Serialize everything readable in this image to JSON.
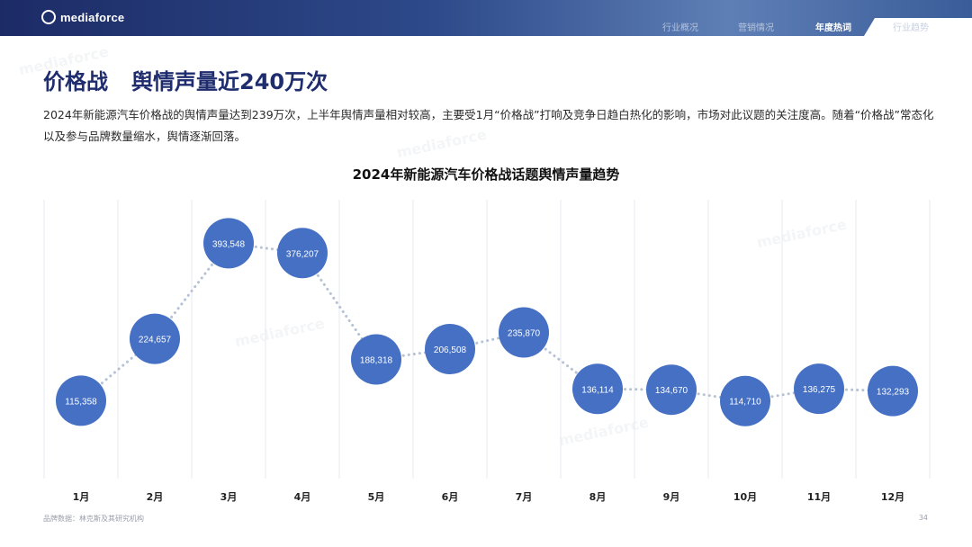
{
  "header": {
    "logo_text": "mediaforce",
    "nav": [
      {
        "label": "行业概况",
        "active": false
      },
      {
        "label": "营销情况",
        "active": false
      },
      {
        "label": "年度热词",
        "active": true
      },
      {
        "label": "行业趋势",
        "active": false
      }
    ]
  },
  "page": {
    "title_part1": "价格战",
    "title_part2": "舆情声量近240万次",
    "description": "2024年新能源汽车价格战的舆情声量达到239万次，上半年舆情声量相对较高，主要受1月“价格战”打响及竞争日趋白热化的影响，市场对此议题的关注度高。随着“价格战”常态化以及参与品牌数量缩水，舆情逐渐回落。"
  },
  "footer": {
    "source": "品牌数据：林克斯及其研究机构",
    "page_number": "34"
  },
  "watermark_text": "mediaforce",
  "colors": {
    "bubble": "#4570c4",
    "dots": "#b5c2d6",
    "gridline": "#e6e9ef",
    "title_color": "#1f2d6e"
  },
  "chart_data": {
    "type": "line",
    "title": "2024年新能源汽车价格战话题舆情声量趋势",
    "categories": [
      "1月",
      "2月",
      "3月",
      "4月",
      "5月",
      "6月",
      "7月",
      "8月",
      "9月",
      "10月",
      "11月",
      "12月"
    ],
    "values": [
      115358,
      224657,
      393548,
      376207,
      188318,
      206508,
      235870,
      136114,
      134670,
      114710,
      136275,
      132293
    ],
    "value_labels": [
      "115,358",
      "224,657",
      "393,548",
      "376,207",
      "188,318",
      "206,508",
      "235,870",
      "136,114",
      "134,670",
      "114,710",
      "136,275",
      "132,293"
    ],
    "ylim": [
      100000,
      410000
    ],
    "grid": "vertical",
    "legend": "none"
  }
}
